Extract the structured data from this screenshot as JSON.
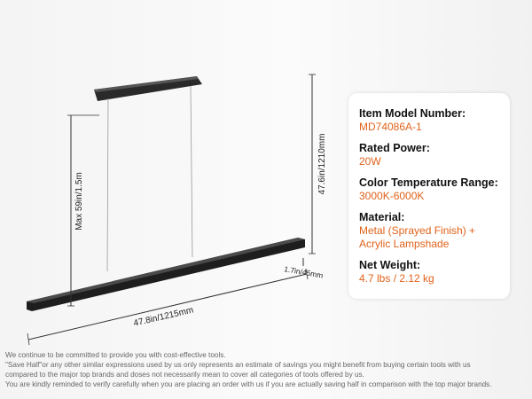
{
  "dimensions": {
    "drop": "Max 59in/1.5m",
    "height": "47.6in/1210mm",
    "depth": "1.7in/45mm",
    "length": "47.8in/1215mm"
  },
  "specs": {
    "items": [
      {
        "label": "Item Model Number:",
        "value": "MD74086A-1"
      },
      {
        "label": "Rated Power:",
        "value": "20W"
      },
      {
        "label": "Color Temperature Range:",
        "value": "3000K-6000K"
      },
      {
        "label": "Material:",
        "value": "Metal (Sprayed Finish) + Acrylic Lampshade"
      },
      {
        "label": "Net Weight:",
        "value": "4.7 lbs / 2.12 kg"
      }
    ]
  },
  "disclaimer": {
    "lines": [
      "We continue to be committed to provide you with cost-effective tools.",
      "\"Save Half\"or any other similar expressions used by us only represents an estimate of savings you might benefit from buying certain tools with us",
      "compared to the major top brands and doses not necessarily mean to cover all categories of tools offered by us.",
      "You are kindly reminded to verify carefully when you are placing an order with us if you are actually saving half in comparison with the top major brands."
    ]
  }
}
